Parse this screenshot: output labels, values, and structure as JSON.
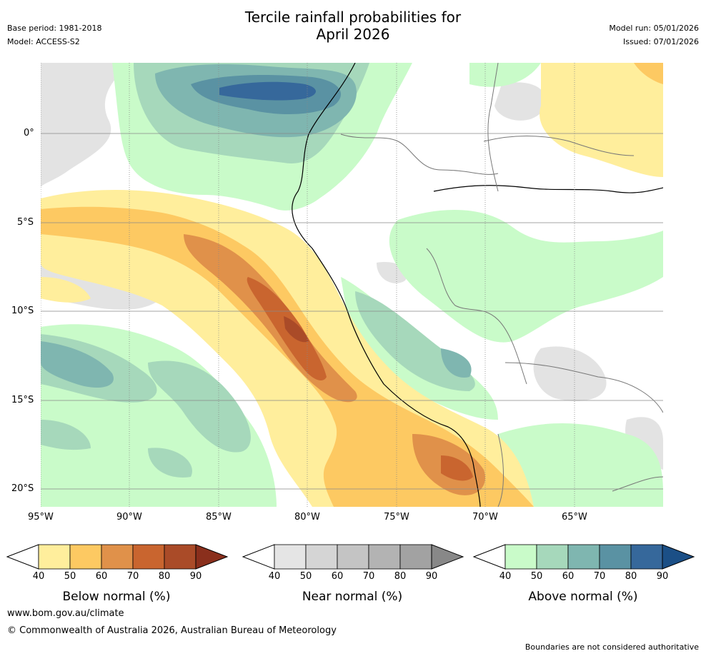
{
  "header": {
    "title_line1": "Tercile rainfall probabilities for",
    "title_line2": "April 2026",
    "base_period": "Base period: 1981-2018",
    "model": "Model: ACCESS-S2",
    "model_run": "Model run: 05/01/2026",
    "issued": "Issued: 07/01/2026"
  },
  "axes": {
    "lat_labels": [
      "0°",
      "5°S",
      "10°S",
      "15°S",
      "20°S"
    ],
    "lon_labels": [
      "95°W",
      "90°W",
      "85°W",
      "80°W",
      "75°W",
      "70°W",
      "65°W"
    ]
  },
  "colorbars": [
    {
      "title": "Below normal (%)",
      "ticks": [
        "40",
        "50",
        "60",
        "70",
        "80",
        "90"
      ],
      "colors": [
        "#ffee9c",
        "#fdc962",
        "#e0914a",
        "#c9652f",
        "#aa4b28",
        "#8a2f1c"
      ]
    },
    {
      "title": "Near normal (%)",
      "ticks": [
        "40",
        "50",
        "60",
        "70",
        "80",
        "90"
      ],
      "colors": [
        "#e5e5e5",
        "#d5d5d5",
        "#c4c4c4",
        "#b3b3b3",
        "#a2a2a2",
        "#888888"
      ]
    },
    {
      "title": "Above normal (%)",
      "ticks": [
        "40",
        "50",
        "60",
        "70",
        "80",
        "90"
      ],
      "colors": [
        "#c9fbc9",
        "#a6d8bb",
        "#7fb6b0",
        "#5a92a3",
        "#36689b",
        "#1b4f86"
      ]
    }
  ],
  "footer": {
    "website": "www.bom.gov.au/climate",
    "copyright": "© Commonwealth of Australia 2026, Australian Bureau of Meteorology",
    "disclaimer": "Boundaries are not considered authoritative"
  }
}
